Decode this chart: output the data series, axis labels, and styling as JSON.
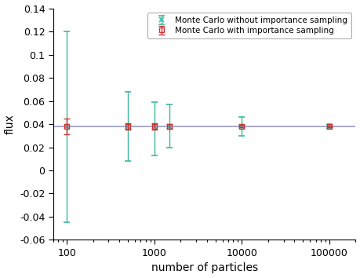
{
  "mc_without_x": [
    100,
    500,
    1000,
    1500,
    10000,
    100000
  ],
  "mc_without_y": [
    0.038,
    0.038,
    0.038,
    0.038,
    0.038,
    0.038
  ],
  "mc_without_yerr_low": [
    0.083,
    0.03,
    0.025,
    0.018,
    0.008,
    0.002
  ],
  "mc_without_yerr_high": [
    0.082,
    0.03,
    0.021,
    0.019,
    0.008,
    0.002
  ],
  "mc_with_x": [
    100,
    500,
    1000,
    1500,
    10000,
    100000
  ],
  "mc_with_y": [
    0.038,
    0.038,
    0.038,
    0.038,
    0.038,
    0.038
  ],
  "mc_with_yerr": [
    0.007,
    0.003,
    0.003,
    0.002,
    0.001,
    0.0005
  ],
  "reference_line_y": 0.038,
  "color_without": "#3cb8a0",
  "color_with": "#cc3333",
  "color_ref_line": "#9999cc",
  "xlabel": "number of particles",
  "ylabel": "flux",
  "label_without": "Monte Carlo without importance sampling",
  "label_with": "Monte Carlo with importance sampling",
  "xlim_left": 70,
  "xlim_right": 200000,
  "ylim": [
    -0.06,
    0.14
  ],
  "yticks": [
    -0.06,
    -0.04,
    -0.02,
    0,
    0.02,
    0.04,
    0.06,
    0.08,
    0.1,
    0.12,
    0.14
  ],
  "xticks": [
    100,
    1000,
    10000,
    100000
  ],
  "bg_color": "#ffffff",
  "figsize": [
    4.59,
    3.54
  ],
  "dpi": 100
}
